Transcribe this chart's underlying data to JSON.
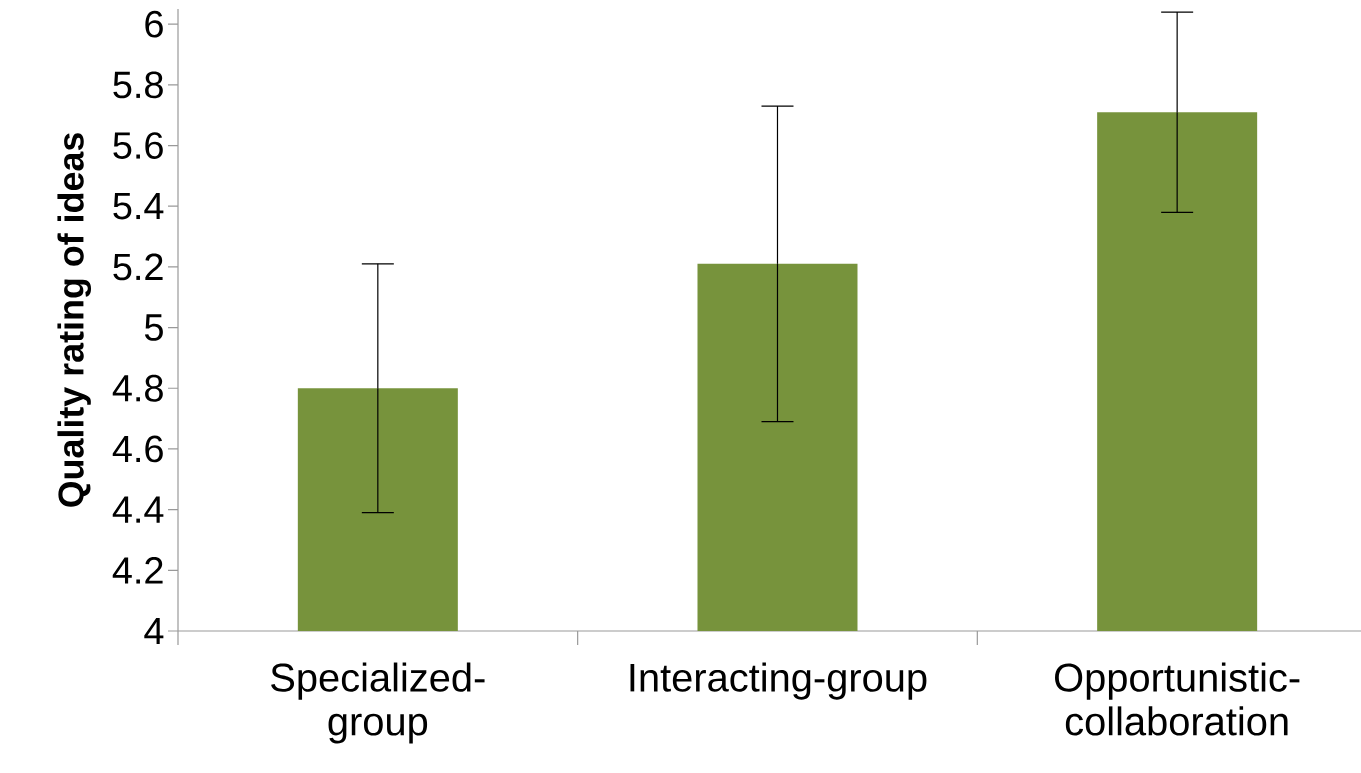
{
  "chart_data": {
    "type": "bar",
    "ylabel": "Quality rating of ideas",
    "categories": [
      "Specialized-group",
      "Interacting-group",
      "Opportunistic-collaboration"
    ],
    "values": [
      4.8,
      5.21,
      5.71
    ],
    "errors": [
      0.41,
      0.52,
      0.33
    ],
    "color": "#77933c",
    "ylim": [
      4,
      6.05
    ],
    "yticks": [
      4,
      4.2,
      4.4,
      4.6,
      4.8,
      5,
      5.2,
      5.4,
      5.6,
      5.8,
      6
    ],
    "grid": false
  }
}
